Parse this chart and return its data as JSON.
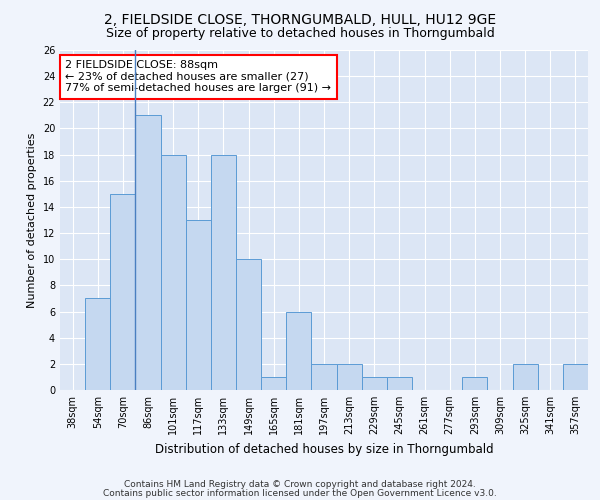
{
  "title1": "2, FIELDSIDE CLOSE, THORNGUMBALD, HULL, HU12 9GE",
  "title2": "Size of property relative to detached houses in Thorngumbald",
  "xlabel": "Distribution of detached houses by size in Thorngumbald",
  "ylabel": "Number of detached properties",
  "categories": [
    "38sqm",
    "54sqm",
    "70sqm",
    "86sqm",
    "101sqm",
    "117sqm",
    "133sqm",
    "149sqm",
    "165sqm",
    "181sqm",
    "197sqm",
    "213sqm",
    "229sqm",
    "245sqm",
    "261sqm",
    "277sqm",
    "293sqm",
    "309sqm",
    "325sqm",
    "341sqm",
    "357sqm"
  ],
  "values": [
    0,
    7,
    15,
    21,
    18,
    13,
    18,
    10,
    1,
    6,
    2,
    2,
    1,
    1,
    0,
    0,
    1,
    0,
    2,
    0,
    2
  ],
  "bar_color": "#c5d8f0",
  "bar_edge_color": "#5b9bd5",
  "annotation_text_line1": "2 FIELDSIDE CLOSE: 88sqm",
  "annotation_text_line2": "← 23% of detached houses are smaller (27)",
  "annotation_text_line3": "77% of semi-detached houses are larger (91) →",
  "annotation_box_color": "white",
  "annotation_box_edge_color": "red",
  "vline_x": 2.5,
  "ylim": [
    0,
    26
  ],
  "yticks": [
    0,
    2,
    4,
    6,
    8,
    10,
    12,
    14,
    16,
    18,
    20,
    22,
    24,
    26
  ],
  "footer1": "Contains HM Land Registry data © Crown copyright and database right 2024.",
  "footer2": "Contains public sector information licensed under the Open Government Licence v3.0.",
  "bg_color": "#e8eef8",
  "plot_bg_color": "#dce6f5",
  "grid_color": "#ffffff",
  "fig_bg_color": "#f0f4fc",
  "title1_fontsize": 10,
  "title2_fontsize": 9,
  "xlabel_fontsize": 8.5,
  "ylabel_fontsize": 8,
  "tick_fontsize": 7,
  "annotation_fontsize": 8,
  "footer_fontsize": 6.5
}
